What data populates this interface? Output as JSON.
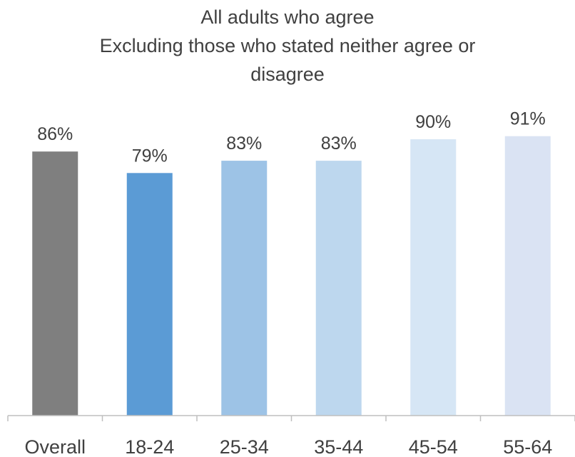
{
  "chart_data": {
    "type": "bar",
    "title_lines": [
      "All adults who agree",
      "Excluding those who stated neither agree or",
      "disagree"
    ],
    "categories": [
      "Overall",
      "18-24",
      "25-34",
      "35-44",
      "45-54",
      "55-64"
    ],
    "values": [
      86,
      79,
      83,
      83,
      90,
      91
    ],
    "value_labels": [
      "86%",
      "79%",
      "83%",
      "83%",
      "90%",
      "91%"
    ],
    "colors": [
      "#7f7f7f",
      "#5b9bd5",
      "#9dc3e6",
      "#bdd7ee",
      "#d6e6f5",
      "#dae3f3"
    ],
    "xlabel": "",
    "ylabel": "",
    "ylim": [
      0,
      100
    ],
    "grid": false,
    "legend": "none"
  }
}
